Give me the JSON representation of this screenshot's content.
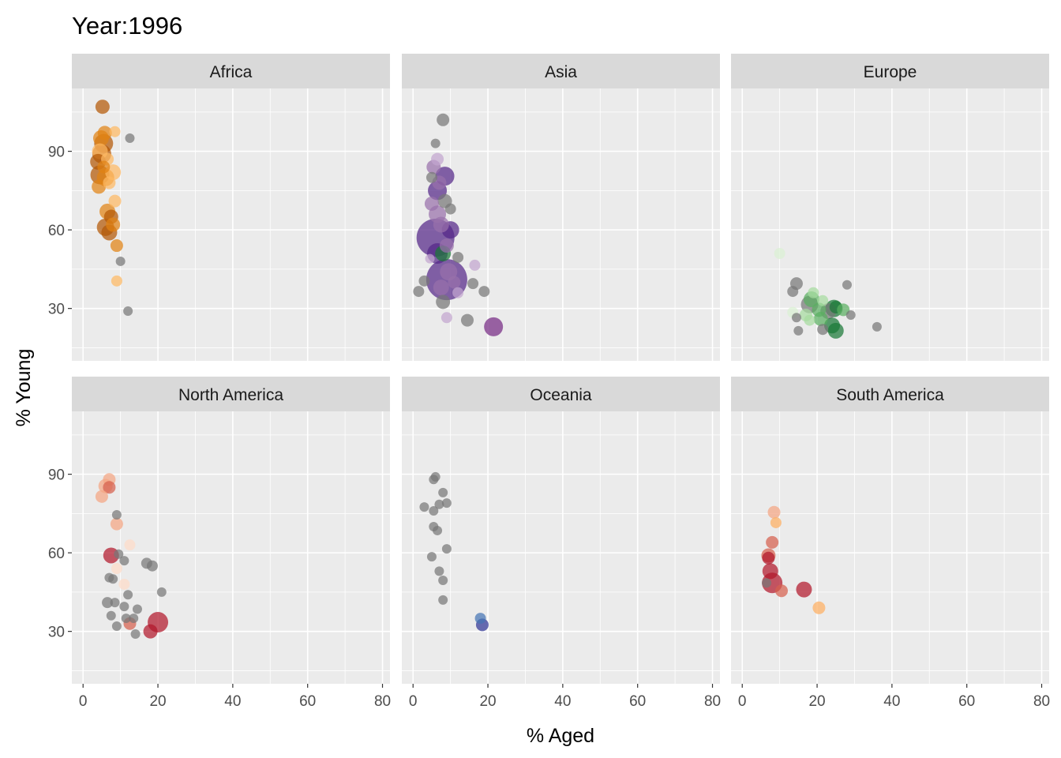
{
  "title": "Year:1996",
  "chart_data": {
    "type": "scatter",
    "title": "Year:1996",
    "xlabel": "% Aged",
    "ylabel": "% Young",
    "xlim": [
      -3,
      82
    ],
    "ylim": [
      10,
      114
    ],
    "x_ticks": [
      0,
      20,
      40,
      60,
      80
    ],
    "y_ticks": [
      30,
      60,
      90
    ],
    "grid": true,
    "legend": "none",
    "panels": [
      {
        "name": "Africa",
        "points": [
          {
            "x": 5.2,
            "y": 107,
            "size": 9,
            "color": "#b35806"
          },
          {
            "x": 12.5,
            "y": 95,
            "size": 6,
            "color": "#777777"
          },
          {
            "x": 8.5,
            "y": 97.5,
            "size": 7,
            "color": "#fdb863"
          },
          {
            "x": 5.8,
            "y": 97,
            "size": 9,
            "color": "#e08214"
          },
          {
            "x": 4.8,
            "y": 95,
            "size": 10,
            "color": "#e08214"
          },
          {
            "x": 5.5,
            "y": 93,
            "size": 12,
            "color": "#b35806"
          },
          {
            "x": 4.5,
            "y": 90,
            "size": 10,
            "color": "#fdb863"
          },
          {
            "x": 5.0,
            "y": 89,
            "size": 12,
            "color": "#b35806"
          },
          {
            "x": 6.5,
            "y": 87,
            "size": 8,
            "color": "#fdb863"
          },
          {
            "x": 4.0,
            "y": 86,
            "size": 10,
            "color": "#b35806"
          },
          {
            "x": 5.5,
            "y": 84,
            "size": 8,
            "color": "#e08214"
          },
          {
            "x": 8.0,
            "y": 82,
            "size": 10,
            "color": "#fdb863"
          },
          {
            "x": 4.5,
            "y": 81,
            "size": 12,
            "color": "#b35806"
          },
          {
            "x": 6.0,
            "y": 80,
            "size": 11,
            "color": "#e08214"
          },
          {
            "x": 7.0,
            "y": 78,
            "size": 8,
            "color": "#fdb863"
          },
          {
            "x": 4.2,
            "y": 76.5,
            "size": 9,
            "color": "#e08214"
          },
          {
            "x": 8.5,
            "y": 71,
            "size": 8,
            "color": "#fdb863"
          },
          {
            "x": 6.5,
            "y": 67,
            "size": 10,
            "color": "#e08214"
          },
          {
            "x": 7.5,
            "y": 65,
            "size": 9,
            "color": "#b35806"
          },
          {
            "x": 8.0,
            "y": 62,
            "size": 9,
            "color": "#e08214"
          },
          {
            "x": 6.0,
            "y": 61,
            "size": 11,
            "color": "#b35806"
          },
          {
            "x": 7.0,
            "y": 59,
            "size": 10,
            "color": "#b35806"
          },
          {
            "x": 9.0,
            "y": 54,
            "size": 8,
            "color": "#e08214"
          },
          {
            "x": 10.0,
            "y": 48,
            "size": 6,
            "color": "#777777"
          },
          {
            "x": 9.0,
            "y": 40.5,
            "size": 7,
            "color": "#fdb863"
          },
          {
            "x": 12.0,
            "y": 29,
            "size": 6,
            "color": "#777777"
          }
        ]
      },
      {
        "name": "Asia",
        "points": [
          {
            "x": 8.0,
            "y": 102,
            "size": 8,
            "color": "#777777"
          },
          {
            "x": 6.0,
            "y": 93,
            "size": 6,
            "color": "#777777"
          },
          {
            "x": 6.5,
            "y": 87,
            "size": 8,
            "color": "#c2a5cf"
          },
          {
            "x": 5.5,
            "y": 84,
            "size": 9,
            "color": "#9970ab"
          },
          {
            "x": 8.5,
            "y": 80.5,
            "size": 12,
            "color": "#542788"
          },
          {
            "x": 5.0,
            "y": 80,
            "size": 7,
            "color": "#777777"
          },
          {
            "x": 7.0,
            "y": 78,
            "size": 9,
            "color": "#9970ab"
          },
          {
            "x": 6.5,
            "y": 75,
            "size": 12,
            "color": "#542788"
          },
          {
            "x": 8.5,
            "y": 71,
            "size": 9,
            "color": "#777777"
          },
          {
            "x": 5.0,
            "y": 70,
            "size": 9,
            "color": "#9970ab"
          },
          {
            "x": 10.0,
            "y": 68,
            "size": 7,
            "color": "#777777"
          },
          {
            "x": 6.5,
            "y": 66,
            "size": 11,
            "color": "#9970ab"
          },
          {
            "x": 7.5,
            "y": 62,
            "size": 10,
            "color": "#9970ab"
          },
          {
            "x": 10.0,
            "y": 60,
            "size": 11,
            "color": "#542788"
          },
          {
            "x": 6.0,
            "y": 57,
            "size": 24,
            "color": "#542788"
          },
          {
            "x": 9.0,
            "y": 54,
            "size": 9,
            "color": "#9970ab"
          },
          {
            "x": 8.0,
            "y": 51,
            "size": 10,
            "color": "#1b7837"
          },
          {
            "x": 6.5,
            "y": 51,
            "size": 13,
            "color": "#542788"
          },
          {
            "x": 12.0,
            "y": 49.5,
            "size": 7,
            "color": "#777777"
          },
          {
            "x": 4.5,
            "y": 49,
            "size": 6,
            "color": "#c2a5cf"
          },
          {
            "x": 16.5,
            "y": 46.5,
            "size": 7,
            "color": "#c2a5cf"
          },
          {
            "x": 9.5,
            "y": 44,
            "size": 11,
            "color": "#9970ab"
          },
          {
            "x": 9.0,
            "y": 41,
            "size": 26,
            "color": "#542788"
          },
          {
            "x": 3.0,
            "y": 40.5,
            "size": 7,
            "color": "#777777"
          },
          {
            "x": 11.0,
            "y": 40,
            "size": 8,
            "color": "#9970ab"
          },
          {
            "x": 16.0,
            "y": 39.5,
            "size": 7,
            "color": "#777777"
          },
          {
            "x": 7.5,
            "y": 38,
            "size": 10,
            "color": "#9970ab"
          },
          {
            "x": 1.5,
            "y": 36.5,
            "size": 7,
            "color": "#777777"
          },
          {
            "x": 19.0,
            "y": 36.5,
            "size": 7,
            "color": "#777777"
          },
          {
            "x": 12.0,
            "y": 36,
            "size": 7,
            "color": "#c2a5cf"
          },
          {
            "x": 8.0,
            "y": 32.5,
            "size": 9,
            "color": "#777777"
          },
          {
            "x": 9.0,
            "y": 26.5,
            "size": 7,
            "color": "#c2a5cf"
          },
          {
            "x": 14.5,
            "y": 25.5,
            "size": 8,
            "color": "#777777"
          },
          {
            "x": 21.5,
            "y": 23,
            "size": 12,
            "color": "#762a83"
          }
        ]
      },
      {
        "name": "Europe",
        "points": [
          {
            "x": 10.0,
            "y": 51,
            "size": 7,
            "color": "#d9f0d3"
          },
          {
            "x": 28.0,
            "y": 39,
            "size": 6,
            "color": "#777777"
          },
          {
            "x": 14.5,
            "y": 39.5,
            "size": 8,
            "color": "#777777"
          },
          {
            "x": 19.0,
            "y": 36,
            "size": 7,
            "color": "#a6dba0"
          },
          {
            "x": 13.5,
            "y": 36.5,
            "size": 7,
            "color": "#777777"
          },
          {
            "x": 18.5,
            "y": 33.5,
            "size": 10,
            "color": "#5aae61"
          },
          {
            "x": 21.5,
            "y": 33,
            "size": 7,
            "color": "#a6dba0"
          },
          {
            "x": 18.0,
            "y": 31.5,
            "size": 11,
            "color": "#777777"
          },
          {
            "x": 25.0,
            "y": 30.5,
            "size": 8,
            "color": "#1b7837"
          },
          {
            "x": 20.5,
            "y": 29.5,
            "size": 9,
            "color": "#5aae61"
          },
          {
            "x": 27.0,
            "y": 29.5,
            "size": 8,
            "color": "#5aae61"
          },
          {
            "x": 23.0,
            "y": 29,
            "size": 10,
            "color": "#777777"
          },
          {
            "x": 24.5,
            "y": 30,
            "size": 11,
            "color": "#1b7837"
          },
          {
            "x": 13.5,
            "y": 28.5,
            "size": 7,
            "color": "#d9f0d3"
          },
          {
            "x": 17.0,
            "y": 27.5,
            "size": 8,
            "color": "#a6dba0"
          },
          {
            "x": 29.0,
            "y": 27.5,
            "size": 6,
            "color": "#777777"
          },
          {
            "x": 14.5,
            "y": 26.5,
            "size": 6,
            "color": "#777777"
          },
          {
            "x": 21.0,
            "y": 26,
            "size": 9,
            "color": "#5aae61"
          },
          {
            "x": 18.0,
            "y": 25.5,
            "size": 7,
            "color": "#a6dba0"
          },
          {
            "x": 24.0,
            "y": 23.5,
            "size": 10,
            "color": "#1b7837"
          },
          {
            "x": 36.0,
            "y": 23,
            "size": 6,
            "color": "#777777"
          },
          {
            "x": 21.5,
            "y": 22,
            "size": 7,
            "color": "#777777"
          },
          {
            "x": 15.0,
            "y": 21.5,
            "size": 6,
            "color": "#777777"
          },
          {
            "x": 25.0,
            "y": 21.5,
            "size": 10,
            "color": "#1b7837"
          }
        ]
      },
      {
        "name": "North America",
        "points": [
          {
            "x": 7.0,
            "y": 88,
            "size": 8,
            "color": "#f4a582"
          },
          {
            "x": 6.0,
            "y": 85.5,
            "size": 9,
            "color": "#f4a582"
          },
          {
            "x": 7.0,
            "y": 85,
            "size": 8,
            "color": "#d6604d"
          },
          {
            "x": 5.0,
            "y": 81.5,
            "size": 8,
            "color": "#f4a582"
          },
          {
            "x": 9.0,
            "y": 74.5,
            "size": 6,
            "color": "#777777"
          },
          {
            "x": 9.0,
            "y": 71,
            "size": 8,
            "color": "#f4a582"
          },
          {
            "x": 12.5,
            "y": 63,
            "size": 7,
            "color": "#fddbc7"
          },
          {
            "x": 7.5,
            "y": 59,
            "size": 10,
            "color": "#b2182b"
          },
          {
            "x": 9.5,
            "y": 59.5,
            "size": 6,
            "color": "#777777"
          },
          {
            "x": 11.0,
            "y": 57,
            "size": 6,
            "color": "#777777"
          },
          {
            "x": 17.0,
            "y": 56,
            "size": 7,
            "color": "#777777"
          },
          {
            "x": 18.5,
            "y": 55,
            "size": 7,
            "color": "#777777"
          },
          {
            "x": 9.0,
            "y": 54,
            "size": 7,
            "color": "#fddbc7"
          },
          {
            "x": 7.0,
            "y": 50.5,
            "size": 6,
            "color": "#777777"
          },
          {
            "x": 8.0,
            "y": 50,
            "size": 6,
            "color": "#777777"
          },
          {
            "x": 11.0,
            "y": 48,
            "size": 7,
            "color": "#fddbc7"
          },
          {
            "x": 21.0,
            "y": 45,
            "size": 6,
            "color": "#777777"
          },
          {
            "x": 12.0,
            "y": 44,
            "size": 6,
            "color": "#777777"
          },
          {
            "x": 6.5,
            "y": 41,
            "size": 7,
            "color": "#777777"
          },
          {
            "x": 8.5,
            "y": 41,
            "size": 6,
            "color": "#777777"
          },
          {
            "x": 11.0,
            "y": 39.5,
            "size": 6,
            "color": "#777777"
          },
          {
            "x": 14.5,
            "y": 38.5,
            "size": 6,
            "color": "#777777"
          },
          {
            "x": 7.5,
            "y": 36,
            "size": 6,
            "color": "#777777"
          },
          {
            "x": 11.5,
            "y": 35,
            "size": 6,
            "color": "#777777"
          },
          {
            "x": 13.5,
            "y": 35,
            "size": 6,
            "color": "#777777"
          },
          {
            "x": 12.5,
            "y": 33,
            "size": 8,
            "color": "#d6604d"
          },
          {
            "x": 20.0,
            "y": 33.5,
            "size": 13,
            "color": "#b2182b"
          },
          {
            "x": 9.0,
            "y": 32,
            "size": 6,
            "color": "#777777"
          },
          {
            "x": 18.0,
            "y": 30,
            "size": 9,
            "color": "#b2182b"
          },
          {
            "x": 14.0,
            "y": 29,
            "size": 6,
            "color": "#777777"
          }
        ]
      },
      {
        "name": "Oceania",
        "points": [
          {
            "x": 6.0,
            "y": 89,
            "size": 6,
            "color": "#777777"
          },
          {
            "x": 5.5,
            "y": 88,
            "size": 6,
            "color": "#777777"
          },
          {
            "x": 8.0,
            "y": 83,
            "size": 6,
            "color": "#777777"
          },
          {
            "x": 9.0,
            "y": 79,
            "size": 6,
            "color": "#777777"
          },
          {
            "x": 7.0,
            "y": 78.5,
            "size": 6,
            "color": "#777777"
          },
          {
            "x": 3.0,
            "y": 77.5,
            "size": 6,
            "color": "#777777"
          },
          {
            "x": 5.5,
            "y": 76,
            "size": 6,
            "color": "#777777"
          },
          {
            "x": 5.5,
            "y": 70,
            "size": 6,
            "color": "#777777"
          },
          {
            "x": 6.5,
            "y": 68.5,
            "size": 6,
            "color": "#777777"
          },
          {
            "x": 9.0,
            "y": 61.5,
            "size": 6,
            "color": "#777777"
          },
          {
            "x": 5.0,
            "y": 58.5,
            "size": 6,
            "color": "#777777"
          },
          {
            "x": 7.0,
            "y": 53,
            "size": 6,
            "color": "#777777"
          },
          {
            "x": 8.0,
            "y": 49.5,
            "size": 6,
            "color": "#777777"
          },
          {
            "x": 8.0,
            "y": 42,
            "size": 6,
            "color": "#777777"
          },
          {
            "x": 18.0,
            "y": 35,
            "size": 7,
            "color": "#4575b4"
          },
          {
            "x": 18.5,
            "y": 32.5,
            "size": 8,
            "color": "#313695"
          }
        ]
      },
      {
        "name": "South America",
        "points": [
          {
            "x": 8.5,
            "y": 75.5,
            "size": 8,
            "color": "#f4a582"
          },
          {
            "x": 9.0,
            "y": 71.5,
            "size": 7,
            "color": "#fdae61"
          },
          {
            "x": 8.0,
            "y": 64,
            "size": 8,
            "color": "#d6604d"
          },
          {
            "x": 7.0,
            "y": 59,
            "size": 9,
            "color": "#d6604d"
          },
          {
            "x": 7.0,
            "y": 58,
            "size": 8,
            "color": "#b2182b"
          },
          {
            "x": 7.5,
            "y": 53,
            "size": 10,
            "color": "#b2182b"
          },
          {
            "x": 6.5,
            "y": 48.5,
            "size": 6,
            "color": "#777777"
          },
          {
            "x": 8.0,
            "y": 48.5,
            "size": 13,
            "color": "#b2182b"
          },
          {
            "x": 10.5,
            "y": 45.5,
            "size": 8,
            "color": "#d6604d"
          },
          {
            "x": 16.5,
            "y": 46,
            "size": 10,
            "color": "#b2182b"
          },
          {
            "x": 20.5,
            "y": 39,
            "size": 8,
            "color": "#fdae61"
          }
        ]
      }
    ]
  }
}
